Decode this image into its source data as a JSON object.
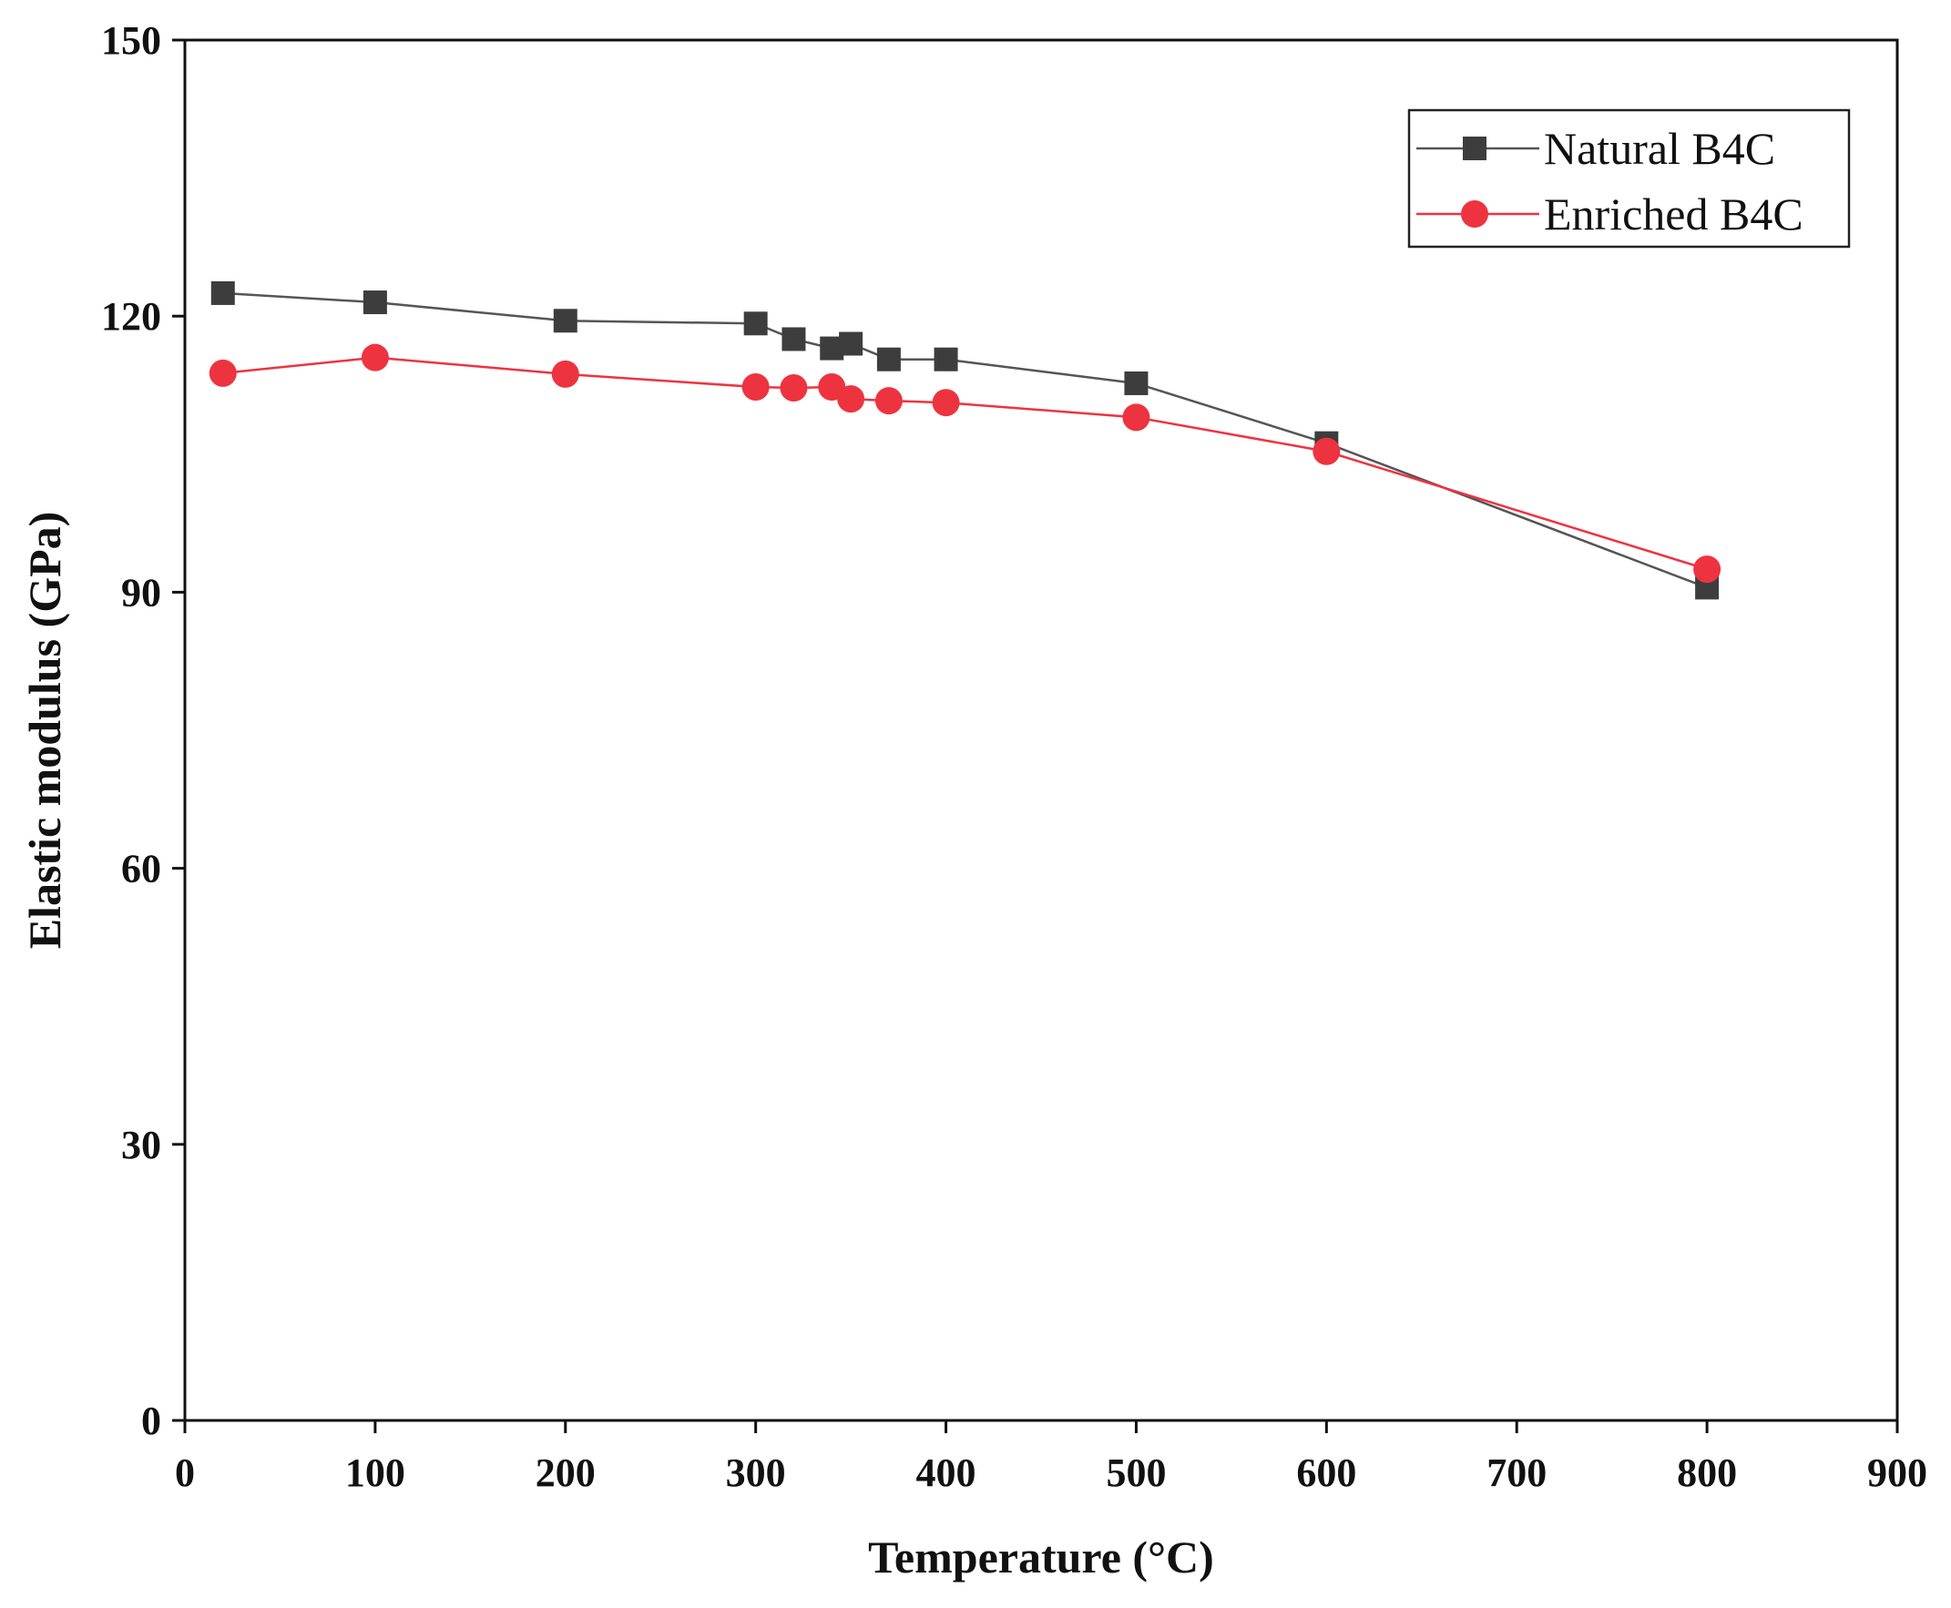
{
  "chart_data": {
    "type": "line",
    "title": "",
    "xlabel": "Temperature (°C)",
    "ylabel": "Elastic modulus (GPa)",
    "xlim": [
      0,
      900
    ],
    "ylim": [
      0,
      150
    ],
    "x_ticks": [
      0,
      100,
      200,
      300,
      400,
      500,
      600,
      700,
      800,
      900
    ],
    "y_ticks": [
      0,
      30,
      60,
      90,
      120,
      150
    ],
    "grid": false,
    "legend_position": "top-right",
    "series": [
      {
        "name": "Natural B4C",
        "color": "#3d3d3d",
        "line_color": "#555555",
        "marker": "square",
        "points": [
          {
            "x": 20,
            "y": 122.5
          },
          {
            "x": 100,
            "y": 121.5
          },
          {
            "x": 200,
            "y": 119.5
          },
          {
            "x": 300,
            "y": 119.2
          },
          {
            "x": 320,
            "y": 117.5
          },
          {
            "x": 340,
            "y": 116.5
          },
          {
            "x": 350,
            "y": 117
          },
          {
            "x": 370,
            "y": 115.3
          },
          {
            "x": 400,
            "y": 115.3
          },
          {
            "x": 500,
            "y": 112.7
          },
          {
            "x": 600,
            "y": 106.2
          },
          {
            "x": 800,
            "y": 90.5
          }
        ]
      },
      {
        "name": "Enriched B4C",
        "color": "#ee3340",
        "line_color": "#ee3340",
        "marker": "circle",
        "points": [
          {
            "x": 20,
            "y": 113.8
          },
          {
            "x": 100,
            "y": 115.5
          },
          {
            "x": 200,
            "y": 113.7
          },
          {
            "x": 300,
            "y": 112.3
          },
          {
            "x": 320,
            "y": 112.2
          },
          {
            "x": 340,
            "y": 112.3
          },
          {
            "x": 350,
            "y": 111
          },
          {
            "x": 370,
            "y": 110.8
          },
          {
            "x": 400,
            "y": 110.6
          },
          {
            "x": 500,
            "y": 109
          },
          {
            "x": 600,
            "y": 105.3
          },
          {
            "x": 800,
            "y": 92.5
          }
        ]
      }
    ]
  }
}
